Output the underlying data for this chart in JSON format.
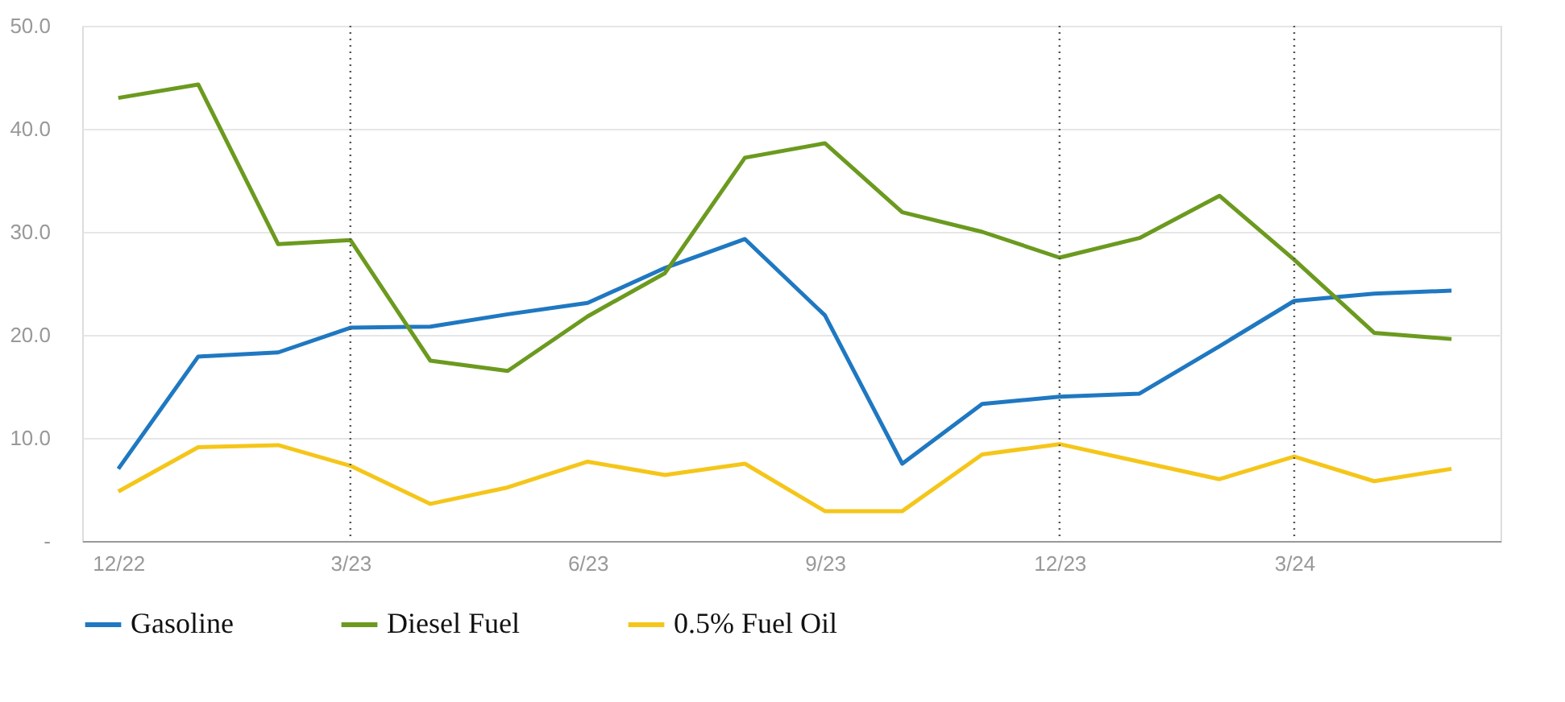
{
  "chart_data": {
    "type": "line",
    "x": [
      "2022-12",
      "2023-01",
      "2023-02",
      "2023-03",
      "2023-04",
      "2023-05",
      "2023-06",
      "2023-07",
      "2023-08",
      "2023-09",
      "2023-10",
      "2023-11",
      "2023-12",
      "2024-01",
      "2024-02",
      "2024-03",
      "2024-04",
      "2024-05"
    ],
    "series": [
      {
        "name": "Gasoline",
        "color": "#1f78c1",
        "values": [
          7.0,
          17.9,
          18.3,
          20.7,
          20.8,
          22.0,
          23.1,
          26.5,
          29.3,
          21.9,
          7.5,
          13.3,
          14.0,
          14.3,
          18.9,
          23.3,
          24.0,
          24.3
        ]
      },
      {
        "name": "Diesel Fuel",
        "color": "#6b9a1f",
        "values": [
          43.0,
          44.3,
          28.8,
          29.2,
          17.5,
          16.5,
          21.8,
          26.0,
          37.2,
          38.6,
          31.9,
          30.0,
          27.5,
          29.4,
          33.5,
          27.3,
          20.2,
          19.6
        ]
      },
      {
        "name": "0.5% Fuel Oil",
        "color": "#f5c61a",
        "values": [
          4.8,
          9.1,
          9.3,
          7.3,
          3.6,
          5.2,
          7.7,
          6.4,
          7.5,
          2.9,
          2.9,
          8.4,
          9.4,
          7.7,
          6.0,
          8.2,
          5.8,
          7.0
        ]
      }
    ],
    "xlim": [
      "2022-11-17",
      "2024-05-20"
    ],
    "xticks": [
      {
        "value": "2022-12",
        "label": "12/22"
      },
      {
        "value": "2023-03",
        "label": "3/23"
      },
      {
        "value": "2023-06",
        "label": "6/23"
      },
      {
        "value": "2023-09",
        "label": "9/23"
      },
      {
        "value": "2023-12",
        "label": "12/23"
      },
      {
        "value": "2024-03",
        "label": "3/24"
      }
    ],
    "ylim": [
      0,
      50
    ],
    "yticks": [
      {
        "value": 0,
        "label": "-"
      },
      {
        "value": 10,
        "label": "10.0"
      },
      {
        "value": 20,
        "label": "20.0"
      },
      {
        "value": 30,
        "label": "30.0"
      },
      {
        "value": 40,
        "label": "40.0"
      },
      {
        "value": 50,
        "label": "50.0"
      }
    ],
    "ref_lines": [
      {
        "axis": "x",
        "value": "2023-03",
        "color": "#555555",
        "line_style": "dotted"
      },
      {
        "axis": "x",
        "value": "2023-12",
        "color": "#555555",
        "line_style": "dotted"
      },
      {
        "axis": "x",
        "value": "2024-03",
        "color": "#555555",
        "line_style": "dotted"
      }
    ],
    "grid": "y",
    "legend": "bottom",
    "marker": "none",
    "line_style": "solid"
  }
}
